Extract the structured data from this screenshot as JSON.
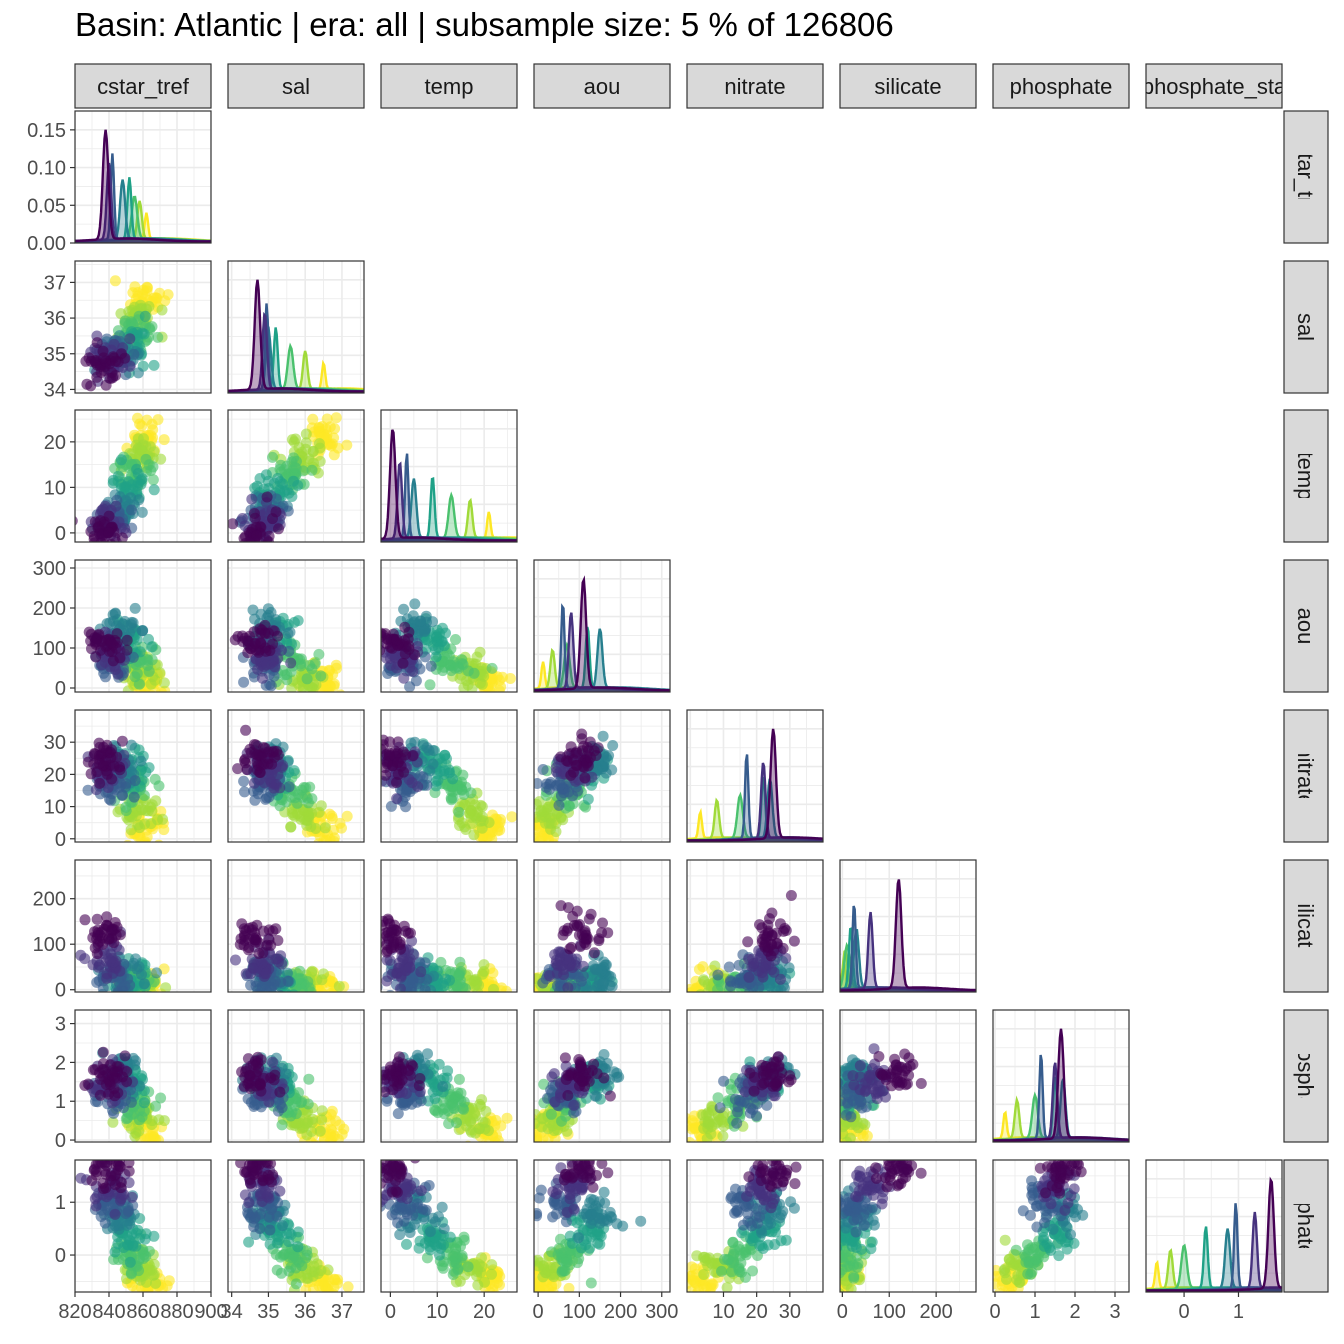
{
  "title": "Basin: Atlantic | era: all | subsample size: 5 % of 126806",
  "palette": [
    "#fde725",
    "#a0da39",
    "#4ac16d",
    "#1fa187",
    "#277f8e",
    "#365c8d",
    "#46327e",
    "#440154"
  ],
  "chart_data": {
    "type": "scatter",
    "layout": "pairs-lower-triangle",
    "variables": [
      "cstar_tref",
      "sal",
      "temp",
      "aou",
      "nitrate",
      "silicate",
      "phosphate",
      "phosphate_star"
    ],
    "variable_labels": [
      "cstar_tref",
      "sal",
      "temp",
      "aou",
      "nitrate",
      "silicate",
      "phosphate",
      "phosphate_sta"
    ],
    "ranges": {
      "cstar_tref": [
        820,
        900
      ],
      "sal": [
        33.9,
        37.6
      ],
      "temp": [
        -2,
        27
      ],
      "aou": [
        -10,
        320
      ],
      "nitrate": [
        -1,
        40
      ],
      "silicate": [
        -5,
        285
      ],
      "phosphate": [
        -0.05,
        3.35
      ],
      "phosphate_star": [
        -0.7,
        1.8
      ]
    },
    "axis_ticks": {
      "cstar_tref": [
        820,
        840,
        860,
        880,
        900
      ],
      "sal": [
        34,
        35,
        36,
        37
      ],
      "temp": [
        0,
        10,
        20
      ],
      "aou": [
        0,
        100,
        200,
        300
      ],
      "nitrate": [
        10,
        20,
        30
      ],
      "silicate": [
        0,
        100,
        200
      ],
      "phosphate": [
        0,
        1,
        2,
        3
      ],
      "phosphate_star": [
        0,
        1
      ]
    },
    "axis_tick_labels": {
      "cstar_tref": [
        "820",
        "840",
        "860",
        "880",
        "900"
      ],
      "sal": [
        "34",
        "35",
        "36",
        "37"
      ],
      "temp": [
        "0",
        "10",
        "20"
      ],
      "aou": [
        "0",
        "100",
        "200",
        "300"
      ],
      "nitrate": [
        "10",
        "20",
        "30"
      ],
      "silicate": [
        "0",
        "100",
        "200"
      ],
      "phosphate": [
        "0",
        "1",
        "2",
        "3"
      ],
      "phosphate_star": [
        "0",
        "1"
      ]
    },
    "row_tick_labels": {
      "cstar_tref": [
        "0.00",
        "0.05",
        "0.10",
        "0.15"
      ],
      "sal": [
        "34",
        "35",
        "36",
        "37"
      ],
      "temp": [
        "0",
        "10",
        "20"
      ],
      "aou": [
        "0",
        "100",
        "200",
        "300"
      ],
      "nitrate": [
        "0",
        "10",
        "20",
        "30"
      ],
      "silicate": [
        "0",
        "100",
        "200"
      ],
      "phosphate": [
        "0",
        "1",
        "2",
        "3"
      ],
      "phosphate_star": [
        "0",
        "1"
      ]
    },
    "row_ticks": {
      "cstar_tref": [
        0,
        0.05,
        0.1,
        0.15
      ],
      "sal": [
        34,
        35,
        36,
        37
      ],
      "temp": [
        0,
        10,
        20
      ],
      "aou": [
        0,
        100,
        200,
        300
      ],
      "nitrate": [
        0,
        10,
        20,
        30
      ],
      "silicate": [
        0,
        100,
        200
      ],
      "phosphate": [
        0,
        1,
        2,
        3
      ],
      "phosphate_star": [
        0,
        1
      ]
    },
    "density_ylim": [
      0,
      0.175
    ],
    "groups": [
      {
        "color_index": 0,
        "cstar_tref": 862,
        "sal": 36.5,
        "temp": 21,
        "aou": 12,
        "nitrate": 3,
        "silicate": 3,
        "phosphate": 0.25,
        "phosphate_star": -0.5
      },
      {
        "color_index": 1,
        "cstar_tref": 858,
        "sal": 36.0,
        "temp": 17,
        "aou": 35,
        "nitrate": 8,
        "silicate": 6,
        "phosphate": 0.55,
        "phosphate_star": -0.25
      },
      {
        "color_index": 2,
        "cstar_tref": 855,
        "sal": 35.6,
        "temp": 13,
        "aou": 70,
        "nitrate": 15,
        "silicate": 10,
        "phosphate": 1.0,
        "phosphate_star": 0.0
      },
      {
        "color_index": 3,
        "cstar_tref": 852,
        "sal": 35.2,
        "temp": 9,
        "aou": 120,
        "nitrate": 22,
        "silicate": 18,
        "phosphate": 1.5,
        "phosphate_star": 0.4
      },
      {
        "color_index": 4,
        "cstar_tref": 848,
        "sal": 35.0,
        "temp": 5,
        "aou": 150,
        "nitrate": 24,
        "silicate": 30,
        "phosphate": 1.7,
        "phosphate_star": 0.8
      },
      {
        "color_index": 5,
        "cstar_tref": 842,
        "sal": 34.95,
        "temp": 3.5,
        "aou": 60,
        "nitrate": 17,
        "silicate": 25,
        "phosphate": 1.15,
        "phosphate_star": 0.95
      },
      {
        "color_index": 6,
        "cstar_tref": 840,
        "sal": 34.9,
        "temp": 2,
        "aou": 80,
        "nitrate": 22,
        "silicate": 60,
        "phosphate": 1.5,
        "phosphate_star": 1.3
      },
      {
        "color_index": 7,
        "cstar_tref": 838,
        "sal": 34.7,
        "temp": 0.5,
        "aou": 110,
        "nitrate": 25,
        "silicate": 120,
        "phosphate": 1.65,
        "phosphate_star": 1.6
      }
    ]
  }
}
